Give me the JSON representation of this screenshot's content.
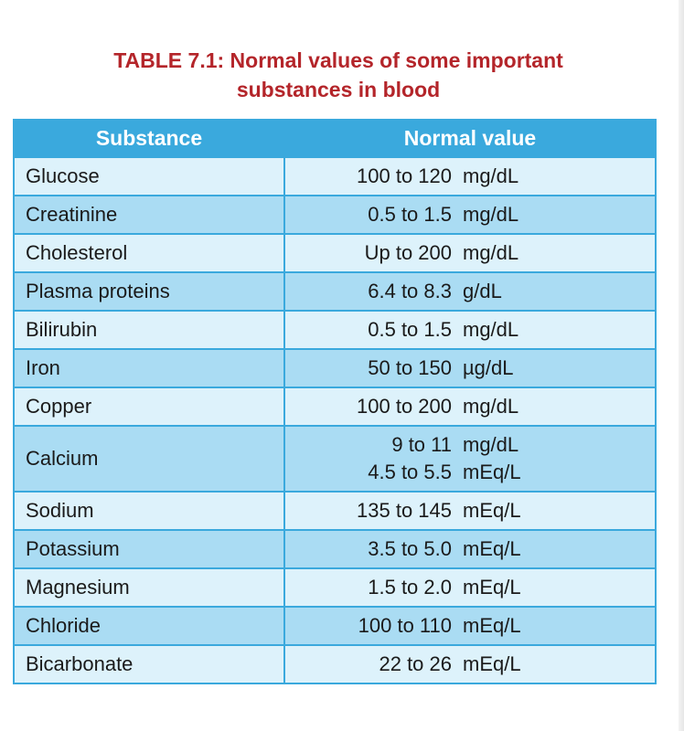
{
  "title": {
    "line1": "TABLE 7.1: Normal values of some important",
    "line2": "substances in blood"
  },
  "colors": {
    "title": "#b4252a",
    "header_bg": "#3aa9dd",
    "row_light": "#ddf2fb",
    "row_dark": "#aadcf3"
  },
  "table": {
    "headers": {
      "substance": "Substance",
      "normal_value": "Normal value"
    },
    "rows": [
      {
        "substance": "Glucose",
        "values": [
          {
            "range": "100 to 120",
            "unit": "mg/dL"
          }
        ]
      },
      {
        "substance": "Creatinine",
        "values": [
          {
            "range": "0.5 to 1.5",
            "unit": "mg/dL"
          }
        ]
      },
      {
        "substance": "Cholesterol",
        "values": [
          {
            "range": "Up to 200",
            "unit": "mg/dL"
          }
        ]
      },
      {
        "substance": "Plasma proteins",
        "values": [
          {
            "range": "6.4 to 8.3",
            "unit": "g/dL"
          }
        ]
      },
      {
        "substance": "Bilirubin",
        "values": [
          {
            "range": "0.5 to 1.5",
            "unit": "mg/dL"
          }
        ]
      },
      {
        "substance": "Iron",
        "values": [
          {
            "range": "50 to 150",
            "unit": "µg/dL"
          }
        ]
      },
      {
        "substance": "Copper",
        "values": [
          {
            "range": "100 to 200",
            "unit": "mg/dL"
          }
        ]
      },
      {
        "substance": "Calcium",
        "values": [
          {
            "range": "9 to 11",
            "unit": "mg/dL"
          },
          {
            "range": "4.5 to 5.5",
            "unit": "mEq/L"
          }
        ]
      },
      {
        "substance": "Sodium",
        "values": [
          {
            "range": "135 to 145",
            "unit": "mEq/L"
          }
        ]
      },
      {
        "substance": "Potassium",
        "values": [
          {
            "range": "3.5 to 5.0",
            "unit": "mEq/L"
          }
        ]
      },
      {
        "substance": "Magnesium",
        "values": [
          {
            "range": "1.5 to 2.0",
            "unit": "mEq/L"
          }
        ]
      },
      {
        "substance": "Chloride",
        "values": [
          {
            "range": "100 to 110",
            "unit": "mEq/L"
          }
        ]
      },
      {
        "substance": "Bicarbonate",
        "values": [
          {
            "range": "22 to 26",
            "unit": "mEq/L"
          }
        ]
      }
    ]
  }
}
